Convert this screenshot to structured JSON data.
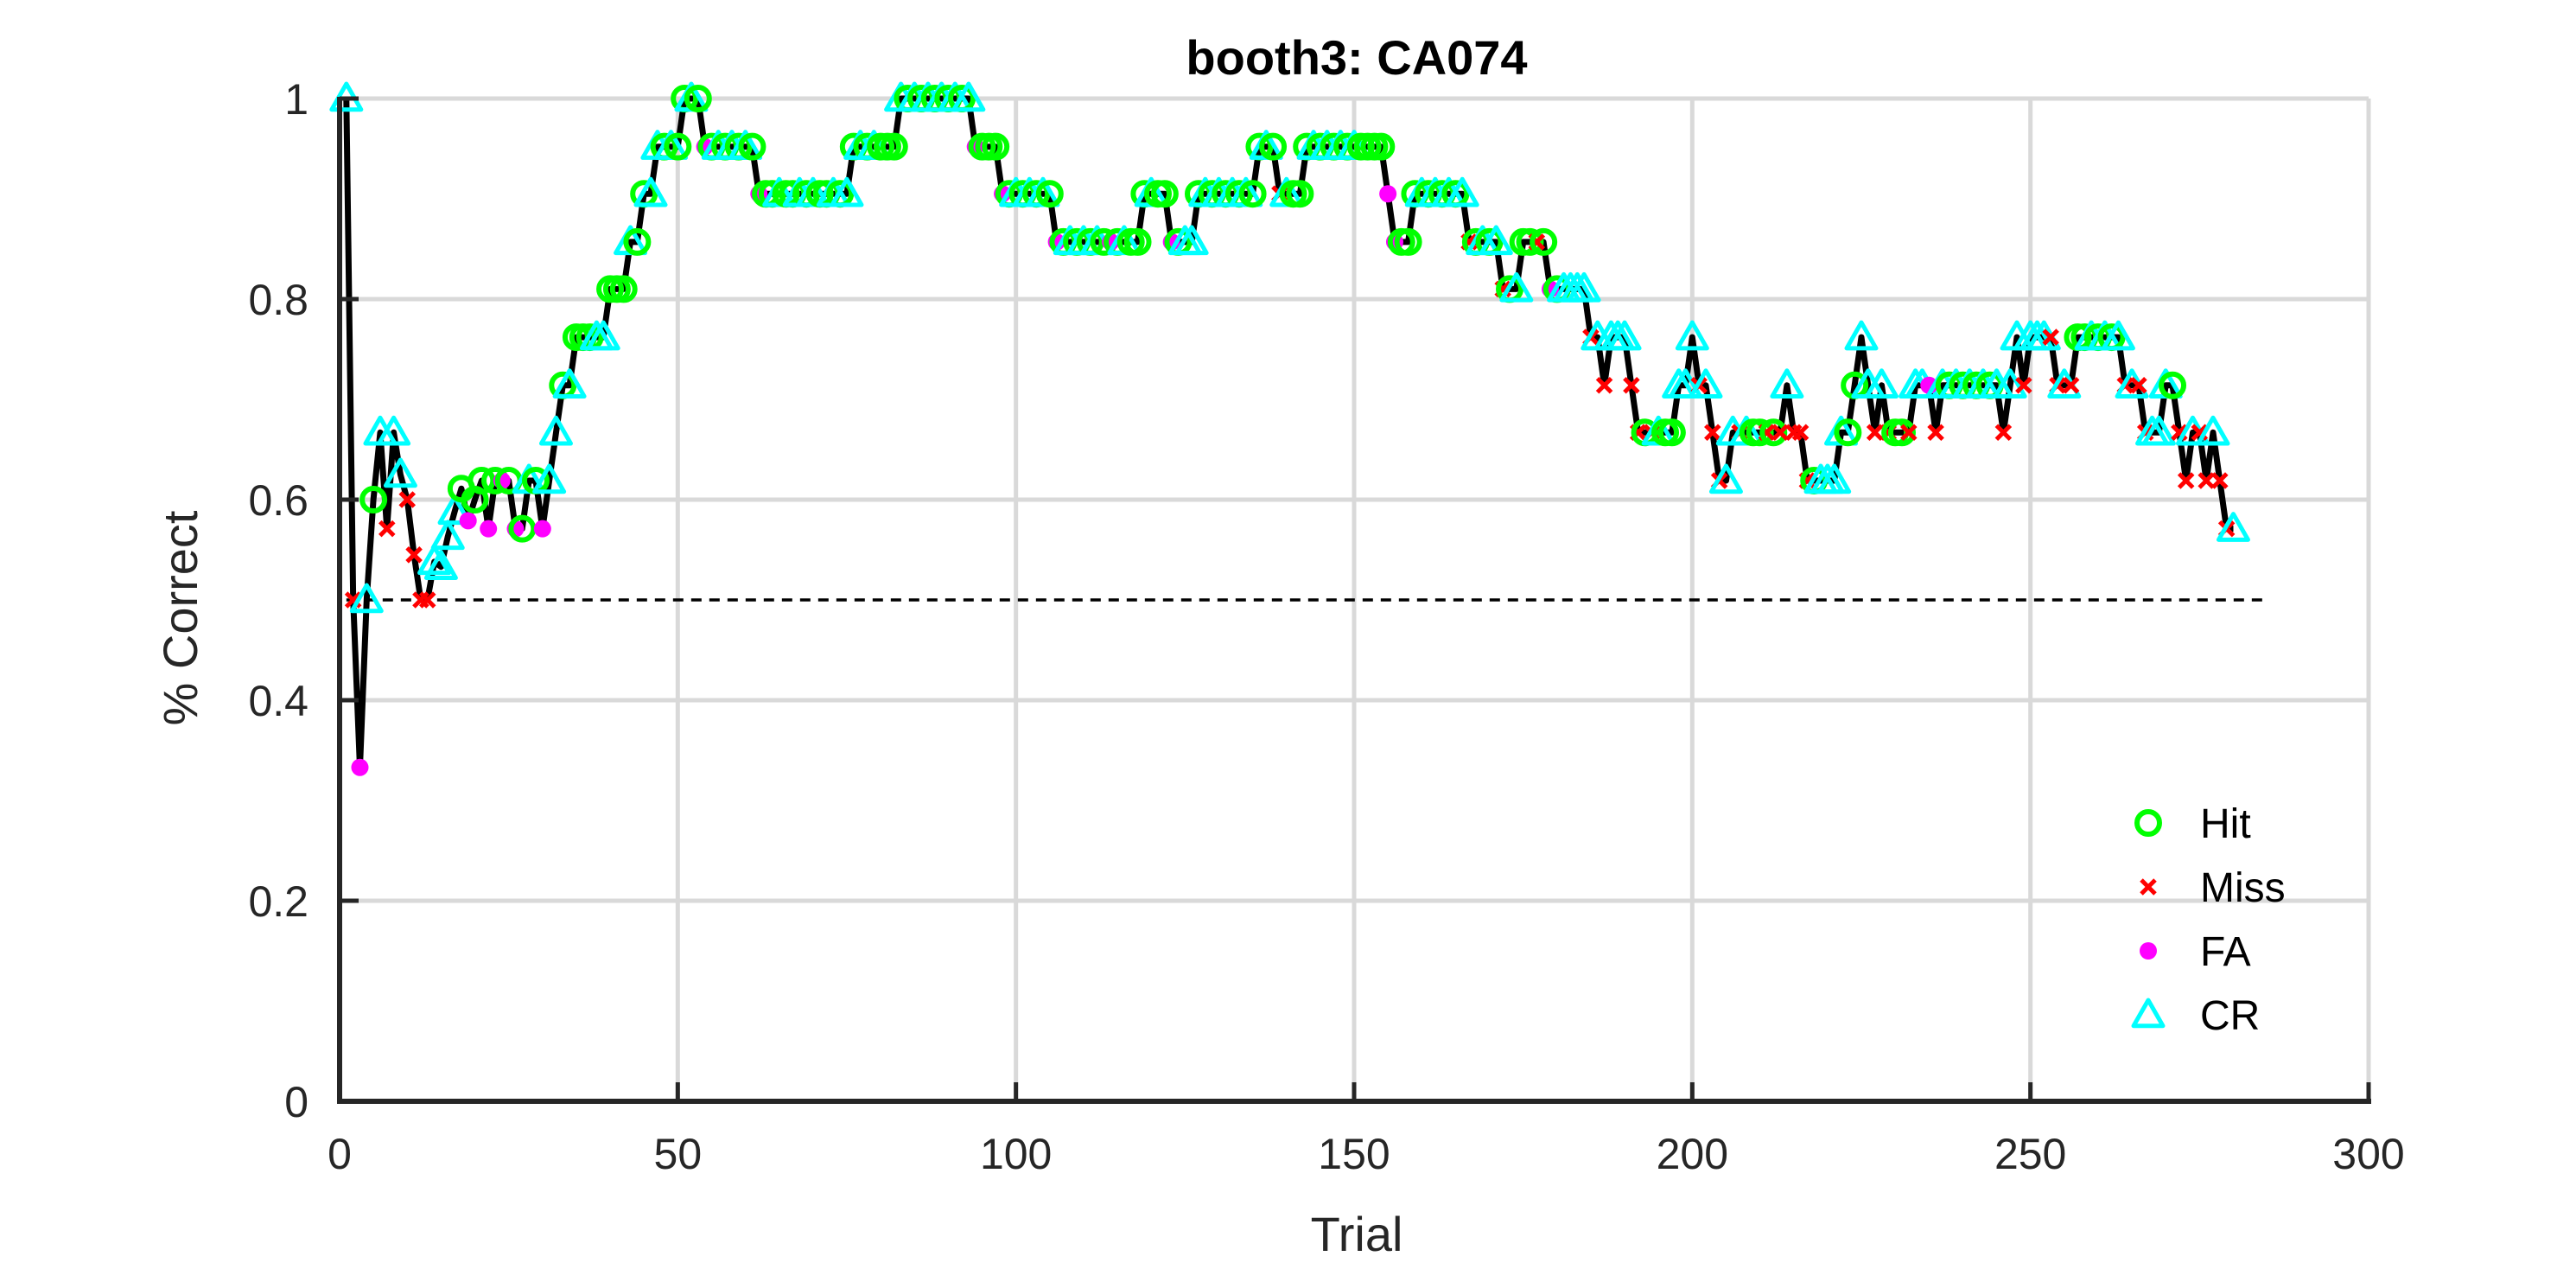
{
  "chart_data": {
    "type": "line",
    "title": "booth3: CA074",
    "xlabel": "Trial",
    "ylabel": "% Correct",
    "xlim": [
      0,
      300
    ],
    "ylim": [
      0,
      1
    ],
    "xticks": [
      0,
      50,
      100,
      150,
      200,
      250,
      300
    ],
    "yticks": [
      0,
      0.2,
      0.4,
      0.6,
      0.8,
      1
    ],
    "grid": true,
    "legend_position": "bottom-right",
    "chance_level": 0.5,
    "colors": {
      "line": "#000000",
      "grid": "#d9d9d9",
      "axis": "#262626",
      "chance": "#000000",
      "Hit": "#00ff00",
      "Miss": "#ff0000",
      "FA": "#ff00ff",
      "CR": "#00ffff"
    },
    "legend": [
      "Hit",
      "Miss",
      "FA",
      "CR"
    ],
    "points": [
      [
        1,
        1.0,
        "CR"
      ],
      [
        2,
        0.5,
        "Miss"
      ],
      [
        3,
        0.333,
        "FA"
      ],
      [
        4,
        0.5,
        "CR"
      ],
      [
        5,
        0.6,
        "Hit"
      ],
      [
        6,
        0.667,
        "CR"
      ],
      [
        7,
        0.571,
        "Miss"
      ],
      [
        8,
        0.667,
        "CR"
      ],
      [
        9,
        0.625,
        "CR"
      ],
      [
        10,
        0.6,
        "Miss"
      ],
      [
        11,
        0.545,
        "Miss"
      ],
      [
        12,
        0.5,
        "Miss"
      ],
      [
        13,
        0.5,
        "Miss"
      ],
      [
        14,
        0.538,
        "CR"
      ],
      [
        15,
        0.533,
        "CR"
      ],
      [
        16,
        0.563,
        "CR"
      ],
      [
        17,
        0.588,
        "CR"
      ],
      [
        18,
        0.611,
        "Hit"
      ],
      [
        19,
        0.579,
        "FA"
      ],
      [
        20,
        0.6,
        "Hit"
      ],
      [
        21,
        0.619,
        "Hit"
      ],
      [
        22,
        0.571,
        "FA"
      ],
      [
        23,
        0.619,
        "Hit"
      ],
      [
        24,
        0.619,
        "FA"
      ],
      [
        25,
        0.619,
        "Hit"
      ],
      [
        26,
        0.571,
        "FA"
      ],
      [
        27,
        0.571,
        "Hit"
      ],
      [
        28,
        0.619,
        "CR"
      ],
      [
        29,
        0.619,
        "Hit"
      ],
      [
        30,
        0.571,
        "FA"
      ],
      [
        31,
        0.619,
        "CR"
      ],
      [
        32,
        0.667,
        "CR"
      ],
      [
        33,
        0.714,
        "Hit"
      ],
      [
        34,
        0.714,
        "CR"
      ],
      [
        35,
        0.762,
        "Hit"
      ],
      [
        36,
        0.762,
        "Hit"
      ],
      [
        37,
        0.762,
        "Hit"
      ],
      [
        38,
        0.762,
        "CR"
      ],
      [
        39,
        0.762,
        "CR"
      ],
      [
        40,
        0.81,
        "Hit"
      ],
      [
        41,
        0.81,
        "Hit"
      ],
      [
        42,
        0.81,
        "Hit"
      ],
      [
        43,
        0.857,
        "CR"
      ],
      [
        44,
        0.857,
        "Hit"
      ],
      [
        45,
        0.905,
        "Hit"
      ],
      [
        46,
        0.905,
        "CR"
      ],
      [
        47,
        0.952,
        "CR"
      ],
      [
        48,
        0.952,
        "Hit"
      ],
      [
        49,
        0.952,
        "CR"
      ],
      [
        50,
        0.952,
        "Hit"
      ],
      [
        51,
        1.0,
        "Hit"
      ],
      [
        52,
        1.0,
        "CR"
      ],
      [
        53,
        1.0,
        "Hit"
      ],
      [
        54,
        0.952,
        "FA"
      ],
      [
        55,
        0.952,
        "Hit"
      ],
      [
        56,
        0.952,
        "CR"
      ],
      [
        57,
        0.952,
        "Hit"
      ],
      [
        58,
        0.952,
        "CR"
      ],
      [
        59,
        0.952,
        "Hit"
      ],
      [
        60,
        0.952,
        "CR"
      ],
      [
        61,
        0.952,
        "Hit"
      ],
      [
        62,
        0.905,
        "FA"
      ],
      [
        63,
        0.905,
        "Hit"
      ],
      [
        64,
        0.905,
        "Hit"
      ],
      [
        65,
        0.905,
        "CR"
      ],
      [
        66,
        0.905,
        "Hit"
      ],
      [
        67,
        0.905,
        "Hit"
      ],
      [
        68,
        0.905,
        "CR"
      ],
      [
        69,
        0.905,
        "Hit"
      ],
      [
        70,
        0.905,
        "CR"
      ],
      [
        71,
        0.905,
        "Hit"
      ],
      [
        72,
        0.905,
        "Hit"
      ],
      [
        73,
        0.905,
        "CR"
      ],
      [
        74,
        0.905,
        "Hit"
      ],
      [
        75,
        0.905,
        "CR"
      ],
      [
        76,
        0.952,
        "Hit"
      ],
      [
        77,
        0.952,
        "CR"
      ],
      [
        78,
        0.952,
        "Hit"
      ],
      [
        79,
        0.952,
        "CR"
      ],
      [
        80,
        0.952,
        "Hit"
      ],
      [
        81,
        0.952,
        "Hit"
      ],
      [
        82,
        0.952,
        "Hit"
      ],
      [
        83,
        1.0,
        "CR"
      ],
      [
        84,
        1.0,
        "Hit"
      ],
      [
        85,
        1.0,
        "CR"
      ],
      [
        86,
        1.0,
        "Hit"
      ],
      [
        87,
        1.0,
        "CR"
      ],
      [
        88,
        1.0,
        "Hit"
      ],
      [
        89,
        1.0,
        "CR"
      ],
      [
        90,
        1.0,
        "Hit"
      ],
      [
        91,
        1.0,
        "CR"
      ],
      [
        92,
        1.0,
        "Hit"
      ],
      [
        93,
        1.0,
        "CR"
      ],
      [
        94,
        0.952,
        "FA"
      ],
      [
        95,
        0.952,
        "Hit"
      ],
      [
        96,
        0.952,
        "Hit"
      ],
      [
        97,
        0.952,
        "Hit"
      ],
      [
        98,
        0.905,
        "FA"
      ],
      [
        99,
        0.905,
        "Hit"
      ],
      [
        100,
        0.905,
        "CR"
      ],
      [
        101,
        0.905,
        "Hit"
      ],
      [
        102,
        0.905,
        "CR"
      ],
      [
        103,
        0.905,
        "Hit"
      ],
      [
        104,
        0.905,
        "CR"
      ],
      [
        105,
        0.905,
        "Hit"
      ],
      [
        106,
        0.857,
        "FA"
      ],
      [
        107,
        0.857,
        "Hit"
      ],
      [
        108,
        0.857,
        "CR"
      ],
      [
        109,
        0.857,
        "Hit"
      ],
      [
        110,
        0.857,
        "CR"
      ],
      [
        111,
        0.857,
        "Hit"
      ],
      [
        112,
        0.857,
        "CR"
      ],
      [
        113,
        0.857,
        "Hit"
      ],
      [
        114,
        0.857,
        "FA"
      ],
      [
        115,
        0.857,
        "Hit"
      ],
      [
        116,
        0.857,
        "CR"
      ],
      [
        117,
        0.857,
        "Hit"
      ],
      [
        118,
        0.857,
        "Hit"
      ],
      [
        119,
        0.905,
        "Hit"
      ],
      [
        120,
        0.905,
        "CR"
      ],
      [
        121,
        0.905,
        "Hit"
      ],
      [
        122,
        0.905,
        "Hit"
      ],
      [
        123,
        0.857,
        "FA"
      ],
      [
        124,
        0.857,
        "Hit"
      ],
      [
        125,
        0.857,
        "CR"
      ],
      [
        126,
        0.857,
        "CR"
      ],
      [
        127,
        0.905,
        "Hit"
      ],
      [
        128,
        0.905,
        "CR"
      ],
      [
        129,
        0.905,
        "Hit"
      ],
      [
        130,
        0.905,
        "CR"
      ],
      [
        131,
        0.905,
        "Hit"
      ],
      [
        132,
        0.905,
        "CR"
      ],
      [
        133,
        0.905,
        "Hit"
      ],
      [
        134,
        0.905,
        "CR"
      ],
      [
        135,
        0.905,
        "Hit"
      ],
      [
        136,
        0.952,
        "Hit"
      ],
      [
        137,
        0.952,
        "CR"
      ],
      [
        138,
        0.952,
        "Hit"
      ],
      [
        139,
        0.905,
        "Miss"
      ],
      [
        140,
        0.905,
        "CR"
      ],
      [
        141,
        0.905,
        "Hit"
      ],
      [
        142,
        0.905,
        "Hit"
      ],
      [
        143,
        0.952,
        "Hit"
      ],
      [
        144,
        0.952,
        "CR"
      ],
      [
        145,
        0.952,
        "Hit"
      ],
      [
        146,
        0.952,
        "CR"
      ],
      [
        147,
        0.952,
        "Hit"
      ],
      [
        148,
        0.952,
        "CR"
      ],
      [
        149,
        0.952,
        "Hit"
      ],
      [
        150,
        0.952,
        "CR"
      ],
      [
        151,
        0.952,
        "Hit"
      ],
      [
        152,
        0.952,
        "Hit"
      ],
      [
        153,
        0.952,
        "Hit"
      ],
      [
        154,
        0.952,
        "Hit"
      ],
      [
        155,
        0.905,
        "FA"
      ],
      [
        156,
        0.857,
        "FA"
      ],
      [
        157,
        0.857,
        "Hit"
      ],
      [
        158,
        0.857,
        "Hit"
      ],
      [
        159,
        0.905,
        "Hit"
      ],
      [
        160,
        0.905,
        "CR"
      ],
      [
        161,
        0.905,
        "Hit"
      ],
      [
        162,
        0.905,
        "CR"
      ],
      [
        163,
        0.905,
        "Hit"
      ],
      [
        164,
        0.905,
        "CR"
      ],
      [
        165,
        0.905,
        "Hit"
      ],
      [
        166,
        0.905,
        "CR"
      ],
      [
        167,
        0.857,
        "Miss"
      ],
      [
        168,
        0.857,
        "Hit"
      ],
      [
        169,
        0.857,
        "CR"
      ],
      [
        170,
        0.857,
        "Hit"
      ],
      [
        171,
        0.857,
        "CR"
      ],
      [
        172,
        0.81,
        "Miss"
      ],
      [
        173,
        0.81,
        "Hit"
      ],
      [
        174,
        0.81,
        "CR"
      ],
      [
        175,
        0.857,
        "Hit"
      ],
      [
        176,
        0.857,
        "Hit"
      ],
      [
        177,
        0.857,
        "Miss"
      ],
      [
        178,
        0.857,
        "Hit"
      ],
      [
        179,
        0.81,
        "FA"
      ],
      [
        180,
        0.81,
        "Hit"
      ],
      [
        181,
        0.81,
        "CR"
      ],
      [
        182,
        0.81,
        "CR"
      ],
      [
        183,
        0.81,
        "CR"
      ],
      [
        184,
        0.81,
        "CR"
      ],
      [
        185,
        0.762,
        "Miss"
      ],
      [
        186,
        0.762,
        "CR"
      ],
      [
        187,
        0.714,
        "Miss"
      ],
      [
        188,
        0.762,
        "CR"
      ],
      [
        189,
        0.762,
        "CR"
      ],
      [
        190,
        0.762,
        "CR"
      ],
      [
        191,
        0.714,
        "Miss"
      ],
      [
        192,
        0.667,
        "Miss"
      ],
      [
        193,
        0.667,
        "Hit"
      ],
      [
        194,
        0.667,
        "Miss"
      ],
      [
        195,
        0.667,
        "CR"
      ],
      [
        196,
        0.667,
        "Hit"
      ],
      [
        197,
        0.667,
        "Hit"
      ],
      [
        198,
        0.714,
        "CR"
      ],
      [
        199,
        0.714,
        "CR"
      ],
      [
        200,
        0.762,
        "CR"
      ],
      [
        201,
        0.714,
        "Miss"
      ],
      [
        202,
        0.714,
        "CR"
      ],
      [
        203,
        0.667,
        "Miss"
      ],
      [
        204,
        0.619,
        "Miss"
      ],
      [
        205,
        0.619,
        "CR"
      ],
      [
        206,
        0.667,
        "CR"
      ],
      [
        207,
        0.667,
        "Miss"
      ],
      [
        208,
        0.667,
        "CR"
      ],
      [
        209,
        0.667,
        "Hit"
      ],
      [
        210,
        0.667,
        "Hit"
      ],
      [
        211,
        0.667,
        "Miss"
      ],
      [
        212,
        0.667,
        "Hit"
      ],
      [
        213,
        0.667,
        "Miss"
      ],
      [
        214,
        0.714,
        "CR"
      ],
      [
        215,
        0.667,
        "Miss"
      ],
      [
        216,
        0.667,
        "Miss"
      ],
      [
        217,
        0.619,
        "Miss"
      ],
      [
        218,
        0.619,
        "Hit"
      ],
      [
        219,
        0.619,
        "CR"
      ],
      [
        220,
        0.619,
        "CR"
      ],
      [
        221,
        0.619,
        "CR"
      ],
      [
        222,
        0.667,
        "CR"
      ],
      [
        223,
        0.667,
        "Hit"
      ],
      [
        224,
        0.714,
        "Hit"
      ],
      [
        225,
        0.762,
        "CR"
      ],
      [
        226,
        0.714,
        "CR"
      ],
      [
        227,
        0.667,
        "Miss"
      ],
      [
        228,
        0.714,
        "CR"
      ],
      [
        229,
        0.667,
        "Miss"
      ],
      [
        230,
        0.667,
        "Hit"
      ],
      [
        231,
        0.667,
        "Hit"
      ],
      [
        232,
        0.667,
        "Miss"
      ],
      [
        233,
        0.714,
        "CR"
      ],
      [
        234,
        0.714,
        "CR"
      ],
      [
        235,
        0.714,
        "FA"
      ],
      [
        236,
        0.667,
        "Miss"
      ],
      [
        237,
        0.714,
        "CR"
      ],
      [
        238,
        0.714,
        "Hit"
      ],
      [
        239,
        0.714,
        "CR"
      ],
      [
        240,
        0.714,
        "Hit"
      ],
      [
        241,
        0.714,
        "CR"
      ],
      [
        242,
        0.714,
        "Hit"
      ],
      [
        243,
        0.714,
        "CR"
      ],
      [
        244,
        0.714,
        "Hit"
      ],
      [
        245,
        0.714,
        "CR"
      ],
      [
        246,
        0.667,
        "Miss"
      ],
      [
        247,
        0.714,
        "CR"
      ],
      [
        248,
        0.762,
        "CR"
      ],
      [
        249,
        0.714,
        "Miss"
      ],
      [
        250,
        0.762,
        "CR"
      ],
      [
        251,
        0.762,
        "CR"
      ],
      [
        252,
        0.762,
        "CR"
      ],
      [
        253,
        0.762,
        "Miss"
      ],
      [
        254,
        0.714,
        "Miss"
      ],
      [
        255,
        0.714,
        "CR"
      ],
      [
        256,
        0.714,
        "Miss"
      ],
      [
        257,
        0.762,
        "Hit"
      ],
      [
        258,
        0.762,
        "Hit"
      ],
      [
        259,
        0.762,
        "CR"
      ],
      [
        260,
        0.762,
        "Hit"
      ],
      [
        261,
        0.762,
        "CR"
      ],
      [
        262,
        0.762,
        "Hit"
      ],
      [
        263,
        0.762,
        "CR"
      ],
      [
        264,
        0.714,
        "Miss"
      ],
      [
        265,
        0.714,
        "CR"
      ],
      [
        266,
        0.714,
        "Miss"
      ],
      [
        267,
        0.667,
        "Miss"
      ],
      [
        268,
        0.667,
        "CR"
      ],
      [
        269,
        0.667,
        "CR"
      ],
      [
        270,
        0.714,
        "CR"
      ],
      [
        271,
        0.714,
        "Hit"
      ],
      [
        272,
        0.667,
        "Miss"
      ],
      [
        273,
        0.619,
        "Miss"
      ],
      [
        274,
        0.667,
        "CR"
      ],
      [
        275,
        0.667,
        "Miss"
      ],
      [
        276,
        0.619,
        "Miss"
      ],
      [
        277,
        0.667,
        "CR"
      ],
      [
        278,
        0.619,
        "Miss"
      ],
      [
        279,
        0.571,
        "Miss"
      ],
      [
        280,
        0.571,
        "CR"
      ]
    ]
  }
}
